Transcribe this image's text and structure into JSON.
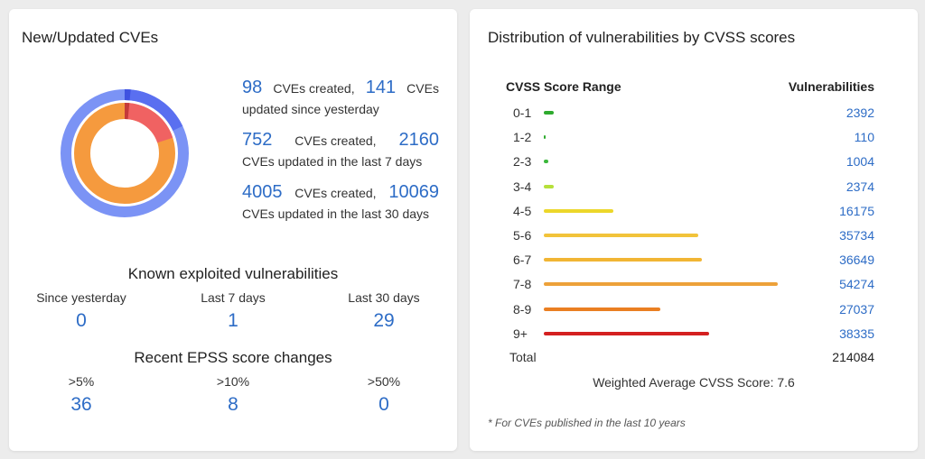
{
  "left_card": {
    "title": "New/Updated CVEs",
    "donut": {
      "outer": {
        "created_fraction": 0.18,
        "created_color": "#5a6ff0",
        "base_color": "#7b93f5",
        "accent_color": "#3f52e0"
      },
      "inner": {
        "created_fraction": 0.2,
        "created_color": "#f06262",
        "base_color": "#f59a3e",
        "accent_color": "#c43a3a"
      }
    },
    "stats": [
      {
        "created": "98",
        "created_label": "CVEs created,",
        "updated": "141",
        "updated_label": "CVEs",
        "line2": "updated since yesterday"
      },
      {
        "created": "752",
        "created_label": "CVEs created,",
        "updated": "2160",
        "updated_label": "",
        "line2": "CVEs updated in the last 7 days"
      },
      {
        "created": "4005",
        "created_label": "CVEs created,",
        "updated": "10069",
        "updated_label": "",
        "line2": "CVEs updated in the last 30 days"
      }
    ],
    "kev": {
      "title": "Known exploited vulnerabilities",
      "columns": [
        {
          "label": "Since yesterday",
          "value": "0"
        },
        {
          "label": "Last 7 days",
          "value": "1"
        },
        {
          "label": "Last 30 days",
          "value": "29"
        }
      ]
    },
    "epss": {
      "title": "Recent EPSS score changes",
      "columns": [
        {
          "label": ">5%",
          "value": "36"
        },
        {
          "label": ">10%",
          "value": "8"
        },
        {
          "label": ">50%",
          "value": "0"
        }
      ]
    }
  },
  "right_card": {
    "title": "Distribution of vulnerabilities by CVSS scores",
    "col_range": "CVSS Score Range",
    "col_vulns": "Vulnerabilities",
    "rows": [
      {
        "range": "0-1",
        "count": "2392",
        "value": 2392,
        "color": "#2eaa2e"
      },
      {
        "range": "1-2",
        "count": "110",
        "value": 110,
        "color": "#2eaa2e"
      },
      {
        "range": "2-3",
        "count": "1004",
        "value": 1004,
        "color": "#3cb83c"
      },
      {
        "range": "3-4",
        "count": "2374",
        "value": 2374,
        "color": "#b6e03a"
      },
      {
        "range": "4-5",
        "count": "16175",
        "value": 16175,
        "color": "#ecd72a"
      },
      {
        "range": "5-6",
        "count": "35734",
        "value": 35734,
        "color": "#f2c33a"
      },
      {
        "range": "6-7",
        "count": "36649",
        "value": 36649,
        "color": "#f1b534"
      },
      {
        "range": "7-8",
        "count": "54274",
        "value": 54274,
        "color": "#eda13a"
      },
      {
        "range": "8-9",
        "count": "27037",
        "value": 27037,
        "color": "#ea7f22"
      },
      {
        "range": "9+",
        "count": "38335",
        "value": 38335,
        "color": "#d42020"
      }
    ],
    "total_label": "Total",
    "total_value": "214084",
    "weighted_average": "Weighted Average CVSS Score: 7.6",
    "footnote": "* For CVEs published in the last 10 years"
  }
}
